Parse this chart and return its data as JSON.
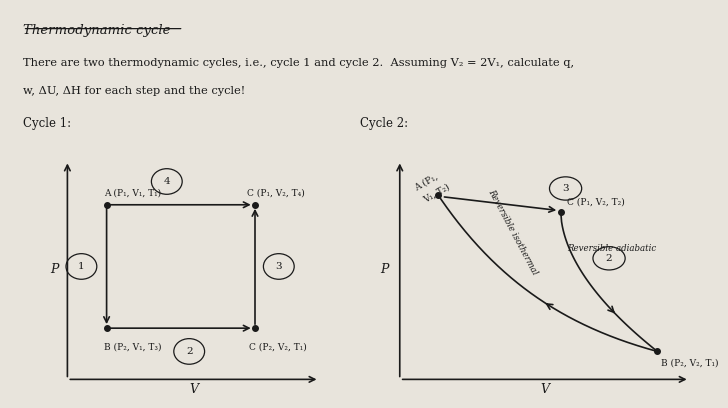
{
  "bg_color": "#e8e4dc",
  "title": "Thermodynamic cycle",
  "description_line1": "There are two thermodynamic cycles, i.e., cycle 1 and cycle 2.  Assuming V₂ = 2V₁, calculate q,",
  "description_line2": "w, ΔU, ΔH for each step and the cycle!",
  "cycle1_label": "Cycle 1:",
  "cycle2_label": "Cycle 2:",
  "cycle1": {
    "A_label": "A (P₁, V₁, T₁)",
    "C_top_label": "C (P₁, V₂, T₄)",
    "B_label": "B (P₂, V₁, T₃)",
    "C_bot_label": "C (P₂, V₂, T₁)",
    "step1": "1",
    "step2": "2",
    "step3": "3",
    "step4": "4"
  },
  "cycle2": {
    "A_label_1": "A (P₁,",
    "A_label_2": "V₁, T₂)",
    "C_top_label": "C (P₁, V₂, T₂)",
    "B_label": "B (P₂, V₂, T₁)",
    "step2": "2",
    "step3": "3",
    "rev_iso": "Reversible isothermal",
    "rev_adia": "Reversible adiabatic"
  },
  "text_color": "#1a1a1a",
  "line_color": "#1a1a1a"
}
